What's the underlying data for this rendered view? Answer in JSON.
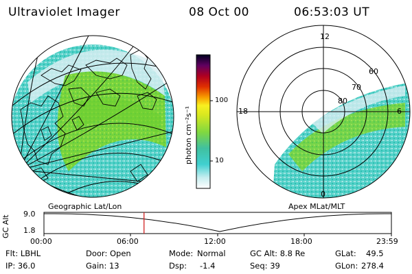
{
  "header": {
    "instrument": "Ultraviolet Imager",
    "date": "08 Oct 00",
    "time": "06:53:03 UT"
  },
  "panels": {
    "left_label": "Geographic Lat/Lon",
    "right_label": "Apex MLat/MLT"
  },
  "polar_plot": {
    "mlt_labels": [
      "12",
      "18",
      "6",
      "0"
    ],
    "lat_labels": [
      "60",
      "70",
      "80"
    ]
  },
  "colorbar": {
    "ticks": [
      "100",
      "10"
    ],
    "unit": "photon cm⁻²s⁻¹"
  },
  "altitude_plot": {
    "ylabel": "GC Alt",
    "yticks": [
      "9.0",
      "1.8"
    ],
    "xticks": [
      "00:00",
      "06:00",
      "12:00",
      "18:00",
      "23:59"
    ],
    "current_time_fraction": 0.288
  },
  "info": {
    "filter": "Flt: LBHL",
    "ip": "IP: 36.0",
    "door": "Door: Open",
    "gain": "Gain: 13",
    "mode_label": "Mode:",
    "mode_value": "Normal",
    "dsp_label": "Dsp:",
    "dsp_value": "-1.4",
    "gc_alt": "GC Alt: 8.8 Re",
    "seq": "Seq: 39",
    "glat_label": "GLat:",
    "glat_value": "49.5",
    "glon_label": "GLon:",
    "glon_value": "278.4"
  },
  "colors": {
    "aurora_green": "#7fd83a",
    "aurora_cyan": "#36d0c4",
    "background_pale": "#d8eef2",
    "time_marker": "#d02020"
  }
}
